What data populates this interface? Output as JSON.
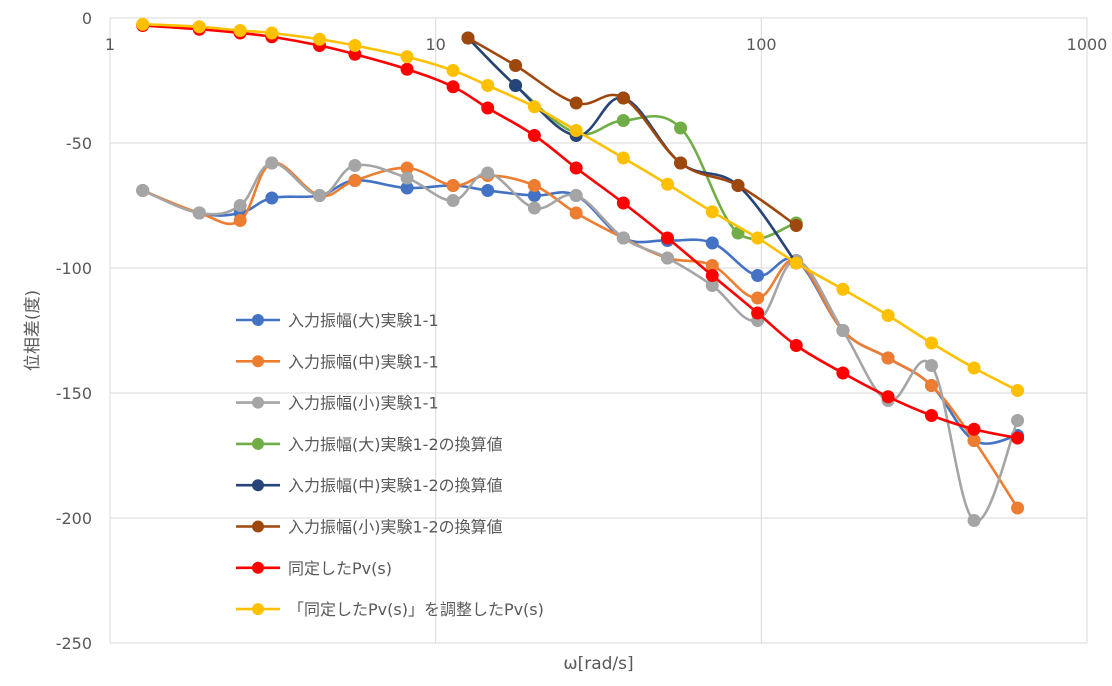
{
  "chart_data": {
    "type": "scatter",
    "xlabel": "ω[rad/s]",
    "ylabel": "位相差(度)",
    "xscale": "log",
    "xlim": [
      1,
      1000
    ],
    "ylim": [
      -250,
      0
    ],
    "xticks": [
      "1",
      "10",
      "100",
      "1000"
    ],
    "yticks": [
      "0",
      "-50",
      "-100",
      "-150",
      "-200",
      "-250"
    ],
    "grid": true,
    "legend_position": "left-inside",
    "series": [
      {
        "name": "入力振幅(大)実験1-1",
        "color": "#4472C4",
        "x": [
          1.26,
          1.88,
          2.51,
          3.14,
          4.4,
          5.65,
          8.17,
          11.31,
          14.45,
          20.1,
          27.0,
          37.7,
          51.5,
          70.7,
          97.4,
          128.0,
          178.0,
          245.0,
          333.0,
          450.0,
          612.0
        ],
        "y": [
          -69,
          -78,
          -78,
          -72,
          -71,
          -65,
          -68,
          -67,
          -69,
          -71,
          -71,
          -88,
          -89,
          -90,
          -103,
          -97,
          -125,
          -136,
          -147,
          -169,
          -167
        ]
      },
      {
        "name": "入力振幅(中)実験1-1",
        "color": "#ED7D31",
        "x": [
          1.26,
          1.88,
          2.51,
          3.14,
          4.4,
          5.65,
          8.17,
          11.31,
          14.45,
          20.1,
          27.0,
          37.7,
          51.5,
          70.7,
          97.4,
          128.0,
          178.0,
          245.0,
          333.0,
          450.0,
          612.0
        ],
        "y": [
          -69,
          -78,
          -81,
          -58,
          -71,
          -65,
          -60,
          -67,
          -63,
          -67,
          -78,
          -88,
          -96,
          -99,
          -112,
          -97,
          -125,
          -136,
          -147,
          -169,
          -196
        ]
      },
      {
        "name": "入力振幅(小)実験1-1",
        "color": "#A5A5A5",
        "x": [
          1.26,
          1.88,
          2.51,
          3.14,
          4.4,
          5.65,
          8.17,
          11.31,
          14.45,
          20.1,
          27.0,
          37.7,
          51.5,
          70.7,
          97.4,
          128.0,
          178.0,
          245.0,
          333.0,
          450.0,
          612.0
        ],
        "y": [
          -69,
          -78,
          -75,
          -58,
          -71,
          -59,
          -64,
          -73,
          -62,
          -76,
          -71,
          -88,
          -96,
          -107,
          -121,
          -97,
          -125,
          -153,
          -139,
          -201,
          -161
        ]
      },
      {
        "name": "入力振幅(大)実験1-2の換算値",
        "color": "#70AD47",
        "x": [
          12.57,
          17.59,
          27.0,
          37.7,
          56.5,
          84.8,
          128.0
        ],
        "y": [
          -8,
          -27,
          -46,
          -41,
          -44,
          -86,
          -82
        ]
      },
      {
        "name": "入力振幅(中)実験1-2の換算値",
        "color": "#264478",
        "x": [
          12.57,
          17.59,
          27.0,
          37.7,
          56.5,
          84.8,
          128.0
        ],
        "y": [
          -8,
          -27,
          -47,
          -32,
          -58,
          -67,
          -98
        ]
      },
      {
        "name": "入力振幅(小)実験1-2の換算値",
        "color": "#9E480E",
        "x": [
          12.57,
          17.59,
          27.0,
          37.7,
          56.5,
          84.8,
          128.0
        ],
        "y": [
          -8,
          -19,
          -34,
          -32,
          -58,
          -67,
          -83
        ]
      },
      {
        "name": "同定したPv(s)",
        "color": "#FF0000",
        "x": [
          1.26,
          1.88,
          2.51,
          3.14,
          4.4,
          5.65,
          8.17,
          11.31,
          14.45,
          20.1,
          27.0,
          37.7,
          51.5,
          70.7,
          97.4,
          128.0,
          178.0,
          245.0,
          333.0,
          450.0,
          612.0
        ],
        "y": [
          -3,
          -4.5,
          -6,
          -7.5,
          -11,
          -14.5,
          -20.5,
          -27.5,
          -36,
          -47,
          -60,
          -74,
          -88,
          -103,
          -118,
          -131,
          -142,
          -151.5,
          -159,
          -164.5,
          -168
        ]
      },
      {
        "name": "「同定したPv(s)」を調整したPv(s)",
        "color": "#FFC000",
        "x": [
          1.26,
          1.88,
          2.51,
          3.14,
          4.4,
          5.65,
          8.17,
          11.31,
          14.45,
          20.1,
          27.0,
          37.7,
          51.5,
          70.7,
          97.4,
          128.0,
          178.0,
          245.0,
          333.0,
          450.0,
          612.0
        ],
        "y": [
          -2.5,
          -3.5,
          -5,
          -6,
          -8.5,
          -11,
          -15.5,
          -21,
          -27,
          -35.5,
          -45,
          -56,
          -66.5,
          -77.5,
          -88,
          -98,
          -108.5,
          -119,
          -130,
          -140,
          -149
        ]
      }
    ]
  }
}
